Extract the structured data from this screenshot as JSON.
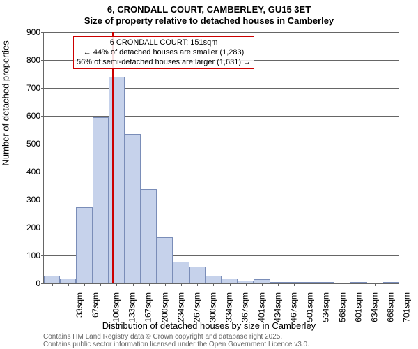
{
  "titles": {
    "main": "6, CRONDALL COURT, CAMBERLEY, GU15 3ET",
    "sub": "Size of property relative to detached houses in Camberley"
  },
  "axes": {
    "ylabel": "Number of detached properties",
    "xlabel": "Distribution of detached houses by size in Camberley",
    "ymax": 900,
    "yticks": [
      0,
      100,
      200,
      300,
      400,
      500,
      600,
      700,
      800,
      900
    ],
    "xticks": [
      "33sqm",
      "67sqm",
      "100sqm",
      "133sqm",
      "167sqm",
      "200sqm",
      "234sqm",
      "267sqm",
      "300sqm",
      "334sqm",
      "367sqm",
      "401sqm",
      "434sqm",
      "467sqm",
      "501sqm",
      "534sqm",
      "568sqm",
      "601sqm",
      "634sqm",
      "668sqm",
      "701sqm"
    ]
  },
  "chart": {
    "type": "histogram",
    "bar_fill": "#c6d2eb",
    "bar_stroke": "#7a8db8",
    "grid_color": "#666666",
    "background": "#ffffff",
    "values": [
      28,
      18,
      272,
      595,
      740,
      535,
      338,
      165,
      78,
      60,
      28,
      18,
      10,
      14,
      4,
      4,
      2,
      3,
      0,
      1,
      0,
      1
    ]
  },
  "marker": {
    "position_sqm": 151,
    "xmin_sqm": 16,
    "xmax_sqm": 718,
    "color": "#cc0000"
  },
  "annotation": {
    "line1": "6 CRONDALL COURT: 151sqm",
    "line2": "← 44% of detached houses are smaller (1,283)",
    "line3": "56% of semi-detached houses are larger (1,631) →",
    "border_color": "#cc0000"
  },
  "footer": {
    "line1": "Contains HM Land Registry data © Crown copyright and database right 2025.",
    "line2": "Contains public sector information licensed under the Open Government Licence v3.0."
  }
}
